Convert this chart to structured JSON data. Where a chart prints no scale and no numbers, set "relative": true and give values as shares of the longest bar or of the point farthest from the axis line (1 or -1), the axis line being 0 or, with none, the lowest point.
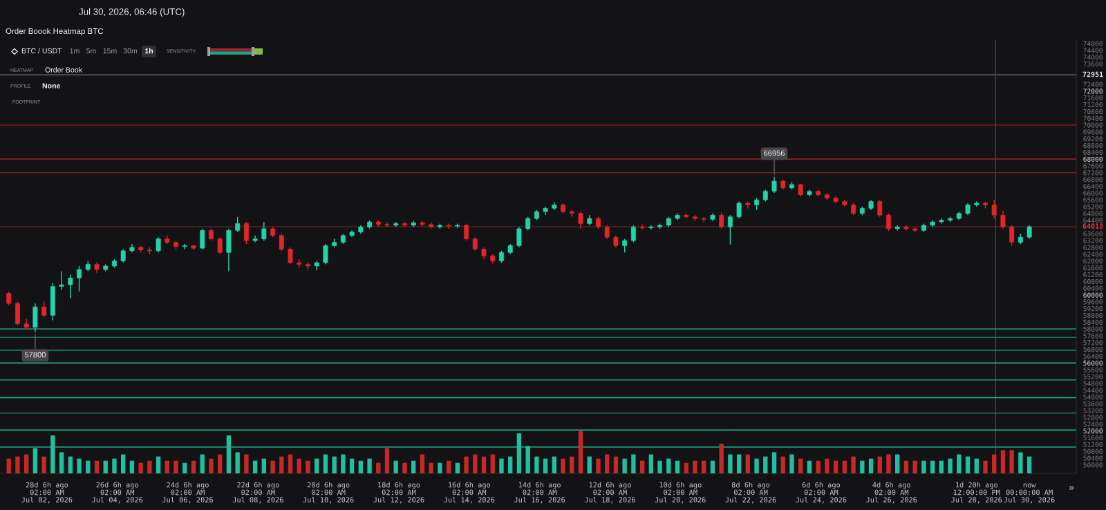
{
  "chart_data": [
    {
      "type": "candlestick",
      "title": "Order Boook Heatmap BTC",
      "subtitle": "Jul 30, 2026, 06:46 (UTC)",
      "x": [
        "2026-07-01T00:00",
        "2026-07-01T06:00",
        "2026-07-01T12:00",
        "2026-07-01T18:00",
        "2026-07-02T00:00",
        "2026-07-02T06:00",
        "2026-07-02T12:00",
        "2026-07-02T18:00",
        "2026-07-03T00:00",
        "2026-07-03T06:00",
        "2026-07-03T12:00",
        "2026-07-03T18:00",
        "2026-07-04T00:00",
        "2026-07-04T06:00",
        "2026-07-04T12:00",
        "2026-07-04T18:00",
        "2026-07-05T00:00",
        "2026-07-05T06:00",
        "2026-07-05T12:00",
        "2026-07-05T18:00",
        "2026-07-06T00:00",
        "2026-07-06T06:00",
        "2026-07-06T12:00",
        "2026-07-06T18:00",
        "2026-07-07T00:00",
        "2026-07-07T06:00",
        "2026-07-07T12:00",
        "2026-07-07T18:00",
        "2026-07-08T00:00",
        "2026-07-08T06:00",
        "2026-07-08T12:00",
        "2026-07-08T18:00",
        "2026-07-09T00:00",
        "2026-07-09T06:00",
        "2026-07-09T12:00",
        "2026-07-09T18:00",
        "2026-07-10T00:00",
        "2026-07-10T06:00",
        "2026-07-10T12:00",
        "2026-07-10T18:00",
        "2026-07-11T00:00",
        "2026-07-11T06:00",
        "2026-07-11T12:00",
        "2026-07-11T18:00",
        "2026-07-12T00:00",
        "2026-07-12T06:00",
        "2026-07-12T12:00",
        "2026-07-12T18:00",
        "2026-07-13T00:00",
        "2026-07-13T06:00",
        "2026-07-13T12:00",
        "2026-07-13T18:00",
        "2026-07-14T00:00",
        "2026-07-14T06:00",
        "2026-07-14T12:00",
        "2026-07-14T18:00",
        "2026-07-15T00:00",
        "2026-07-15T06:00",
        "2026-07-15T12:00",
        "2026-07-15T18:00",
        "2026-07-16T00:00",
        "2026-07-16T06:00",
        "2026-07-16T12:00",
        "2026-07-16T18:00",
        "2026-07-17T00:00",
        "2026-07-17T06:00",
        "2026-07-17T12:00",
        "2026-07-17T18:00",
        "2026-07-18T00:00",
        "2026-07-18T06:00",
        "2026-07-18T12:00",
        "2026-07-18T18:00",
        "2026-07-19T00:00",
        "2026-07-19T06:00",
        "2026-07-19T12:00",
        "2026-07-19T18:00",
        "2026-07-20T00:00",
        "2026-07-20T06:00",
        "2026-07-20T12:00",
        "2026-07-20T18:00",
        "2026-07-21T00:00",
        "2026-07-21T06:00",
        "2026-07-21T12:00",
        "2026-07-21T18:00",
        "2026-07-22T00:00",
        "2026-07-22T06:00",
        "2026-07-22T12:00",
        "2026-07-22T18:00",
        "2026-07-23T00:00",
        "2026-07-23T06:00",
        "2026-07-23T12:00",
        "2026-07-23T18:00",
        "2026-07-24T00:00",
        "2026-07-24T06:00",
        "2026-07-24T12:00",
        "2026-07-24T18:00",
        "2026-07-25T00:00",
        "2026-07-25T06:00",
        "2026-07-25T12:00",
        "2026-07-25T18:00",
        "2026-07-26T00:00",
        "2026-07-26T06:00",
        "2026-07-26T12:00",
        "2026-07-26T18:00",
        "2026-07-27T00:00",
        "2026-07-27T06:00",
        "2026-07-27T12:00",
        "2026-07-27T18:00",
        "2026-07-28T00:00",
        "2026-07-28T06:00",
        "2026-07-28T12:00",
        "2026-07-28T18:00",
        "2026-07-29T00:00",
        "2026-07-29T06:00",
        "2026-07-29T12:00",
        "2026-07-29T18:00",
        "2026-07-30T00:00"
      ],
      "ohlc": [
        [
          60100,
          60200,
          59400,
          59500
        ],
        [
          59500,
          59600,
          58200,
          58300
        ],
        [
          58300,
          58600,
          57950,
          58100
        ],
        [
          58100,
          59500,
          57800,
          59300
        ],
        [
          59300,
          59600,
          58700,
          58800
        ],
        [
          58800,
          60700,
          58500,
          60500
        ],
        [
          60500,
          61400,
          60300,
          60600
        ],
        [
          60600,
          61200,
          59800,
          61000
        ],
        [
          61000,
          61700,
          60200,
          61500
        ],
        [
          61500,
          62000,
          61400,
          61800
        ],
        [
          61800,
          61900,
          61300,
          61500
        ],
        [
          61500,
          61800,
          61400,
          61700
        ],
        [
          61700,
          62100,
          61600,
          62000
        ],
        [
          62000,
          62700,
          61900,
          62600
        ],
        [
          62600,
          63000,
          62500,
          62800
        ],
        [
          62800,
          62900,
          62500,
          62650
        ],
        [
          62650,
          62800,
          62400,
          62600
        ],
        [
          62600,
          63400,
          62500,
          63300
        ],
        [
          63300,
          63500,
          63000,
          63100
        ],
        [
          63100,
          63150,
          62700,
          62850
        ],
        [
          62850,
          63000,
          62700,
          62900
        ],
        [
          62900,
          62950,
          62650,
          62750
        ],
        [
          62750,
          63900,
          62700,
          63800
        ],
        [
          63800,
          63900,
          63200,
          63300
        ],
        [
          63300,
          63400,
          62400,
          62500
        ],
        [
          62500,
          63900,
          61400,
          63800
        ],
        [
          63800,
          64600,
          63700,
          64200
        ],
        [
          64200,
          64300,
          63000,
          63200
        ],
        [
          63200,
          63500,
          63100,
          63300
        ],
        [
          63300,
          64300,
          63200,
          63900
        ],
        [
          63900,
          64000,
          63400,
          63500
        ],
        [
          63500,
          63600,
          62600,
          62700
        ],
        [
          62700,
          62800,
          61800,
          61900
        ],
        [
          61900,
          62100,
          61600,
          61800
        ],
        [
          61800,
          61900,
          61500,
          61700
        ],
        [
          61700,
          62000,
          61450,
          61900
        ],
        [
          61900,
          63000,
          61800,
          62900
        ],
        [
          62900,
          63300,
          62800,
          63100
        ],
        [
          63100,
          63600,
          63000,
          63500
        ],
        [
          63500,
          63800,
          63400,
          63700
        ],
        [
          63700,
          64100,
          63600,
          64000
        ],
        [
          64000,
          64400,
          63900,
          64300
        ],
        [
          64300,
          64400,
          64000,
          64150
        ],
        [
          64150,
          64250,
          64000,
          64100
        ],
        [
          64100,
          64300,
          64000,
          64200
        ],
        [
          64200,
          64300,
          64000,
          64100
        ],
        [
          64100,
          64350,
          64000,
          64250
        ],
        [
          64250,
          64350,
          64050,
          64150
        ],
        [
          64150,
          64250,
          63900,
          64000
        ],
        [
          64000,
          64200,
          63900,
          64100
        ],
        [
          64100,
          64200,
          63900,
          64050
        ],
        [
          64050,
          64200,
          63950,
          64100
        ],
        [
          64100,
          64200,
          63200,
          63300
        ],
        [
          63300,
          63400,
          62600,
          62700
        ],
        [
          62700,
          62800,
          62100,
          62300
        ],
        [
          62300,
          62400,
          61850,
          62000
        ],
        [
          62000,
          62600,
          61900,
          62500
        ],
        [
          62500,
          63000,
          62400,
          62900
        ],
        [
          62900,
          64000,
          62800,
          63900
        ],
        [
          63900,
          64600,
          63800,
          64500
        ],
        [
          64500,
          65000,
          64400,
          64900
        ],
        [
          64900,
          65200,
          64700,
          65100
        ],
        [
          65100,
          65450,
          65000,
          65300
        ],
        [
          65300,
          65400,
          64800,
          64900
        ],
        [
          64900,
          65000,
          64600,
          64800
        ],
        [
          64800,
          64900,
          63900,
          64200
        ],
        [
          64200,
          64700,
          64100,
          64500
        ],
        [
          64500,
          64600,
          63900,
          64000
        ],
        [
          64000,
          64100,
          63300,
          63400
        ],
        [
          63400,
          63500,
          62800,
          62900
        ],
        [
          62900,
          63300,
          62500,
          63200
        ],
        [
          63200,
          64100,
          63100,
          64000
        ],
        [
          64000,
          64150,
          63850,
          63950
        ],
        [
          63950,
          64100,
          63850,
          64000
        ],
        [
          64000,
          64200,
          63900,
          64100
        ],
        [
          64100,
          64600,
          64000,
          64500
        ],
        [
          64500,
          64800,
          64400,
          64700
        ],
        [
          64700,
          64800,
          64500,
          64600
        ],
        [
          64600,
          64700,
          64350,
          64500
        ],
        [
          64500,
          64600,
          64300,
          64450
        ],
        [
          64450,
          64800,
          64350,
          64700
        ],
        [
          64700,
          64850,
          63900,
          64000
        ],
        [
          64000,
          64700,
          62970,
          64600
        ],
        [
          64600,
          65500,
          64500,
          65400
        ],
        [
          65400,
          65500,
          65100,
          65300
        ],
        [
          65300,
          65700,
          65000,
          65600
        ],
        [
          65600,
          66200,
          65500,
          66100
        ],
        [
          66100,
          66956,
          66000,
          66700
        ],
        [
          66700,
          66800,
          66200,
          66300
        ],
        [
          66300,
          66650,
          66200,
          66500
        ],
        [
          66500,
          66550,
          65800,
          65900
        ],
        [
          65900,
          66200,
          65800,
          66100
        ],
        [
          66100,
          66200,
          65800,
          65900
        ],
        [
          65900,
          66000,
          65600,
          65700
        ],
        [
          65700,
          65800,
          65400,
          65500
        ],
        [
          65500,
          65600,
          65200,
          65300
        ],
        [
          65300,
          65400,
          64700,
          64800
        ],
        [
          64800,
          65200,
          64700,
          65100
        ],
        [
          65100,
          65600,
          65000,
          65500
        ],
        [
          65500,
          65600,
          64600,
          64700
        ],
        [
          64700,
          64800,
          63750,
          63900
        ],
        [
          63900,
          64100,
          63800,
          64000
        ],
        [
          64000,
          64100,
          63800,
          63900
        ],
        [
          63900,
          64000,
          63700,
          63800
        ],
        [
          63800,
          64200,
          63700,
          64100
        ],
        [
          64100,
          64400,
          64000,
          64300
        ],
        [
          64300,
          64500,
          64200,
          64400
        ],
        [
          64400,
          64600,
          64300,
          64500
        ],
        [
          64500,
          64900,
          64400,
          64800
        ],
        [
          64800,
          65400,
          64700,
          65300
        ],
        [
          65300,
          65500,
          65200,
          65400
        ],
        [
          65400,
          65500,
          65100,
          65300
        ],
        [
          65300,
          65600,
          64500,
          64700
        ],
        [
          64700,
          64950,
          63900,
          64000
        ],
        [
          64000,
          64100,
          62900,
          63100
        ],
        [
          63100,
          63600,
          63000,
          63400
        ],
        [
          63400,
          64100,
          63300,
          64018
        ]
      ],
      "colors": [
        "#e0252b",
        "#e0252b",
        "#e0252b",
        "#22d3aa",
        "#e0252b",
        "#22d3aa",
        "#22d3aa",
        "#22d3aa",
        "#22d3aa",
        "#22d3aa",
        "#e0252b",
        "#22d3aa",
        "#22d3aa",
        "#22d3aa",
        "#22d3aa",
        "#e0252b",
        "#e0252b",
        "#22d3aa",
        "#e0252b",
        "#e0252b",
        "#22d3aa",
        "#e0252b",
        "#22d3aa",
        "#e0252b",
        "#e0252b",
        "#22d3aa",
        "#22d3aa",
        "#e0252b",
        "#22d3aa",
        "#22d3aa",
        "#e0252b",
        "#e0252b",
        "#e0252b",
        "#e0252b",
        "#e0252b",
        "#22d3aa",
        "#22d3aa",
        "#22d3aa",
        "#22d3aa",
        "#22d3aa",
        "#22d3aa",
        "#22d3aa",
        "#e0252b",
        "#e0252b",
        "#22d3aa",
        "#e0252b",
        "#22d3aa",
        "#e0252b",
        "#e0252b",
        "#22d3aa",
        "#e0252b",
        "#22d3aa",
        "#e0252b",
        "#e0252b",
        "#e0252b",
        "#e0252b",
        "#22d3aa",
        "#22d3aa",
        "#22d3aa",
        "#22d3aa",
        "#22d3aa",
        "#22d3aa",
        "#22d3aa",
        "#e0252b",
        "#e0252b",
        "#e0252b",
        "#22d3aa",
        "#e0252b",
        "#e0252b",
        "#e0252b",
        "#22d3aa",
        "#22d3aa",
        "#e0252b",
        "#22d3aa",
        "#22d3aa",
        "#22d3aa",
        "#22d3aa",
        "#e0252b",
        "#e0252b",
        "#e0252b",
        "#22d3aa",
        "#e0252b",
        "#22d3aa",
        "#22d3aa",
        "#e0252b",
        "#22d3aa",
        "#22d3aa",
        "#22d3aa",
        "#e0252b",
        "#22d3aa",
        "#e0252b",
        "#22d3aa",
        "#e0252b",
        "#e0252b",
        "#e0252b",
        "#e0252b",
        "#e0252b",
        "#22d3aa",
        "#22d3aa",
        "#e0252b",
        "#e0252b",
        "#22d3aa",
        "#e0252b",
        "#e0252b",
        "#22d3aa",
        "#22d3aa",
        "#22d3aa",
        "#22d3aa",
        "#22d3aa",
        "#22d3aa",
        "#22d3aa",
        "#e0252b",
        "#e0252b",
        "#e0252b",
        "#e0252b",
        "#22d3aa",
        "#22d3aa"
      ],
      "xlim": [
        "2026-06-30T18:00",
        "2026-07-31T08:00"
      ],
      "xticks": [
        {
          "value": "2026-07-02T02:00",
          "label": "28d 6h ago\n02:00 AM\nJul 02, 2026"
        },
        {
          "value": "2026-07-04T02:00",
          "label": "26d 6h ago\n02:00 AM\nJul 04, 2026"
        },
        {
          "value": "2026-07-06T02:00",
          "label": "24d 6h ago\n02:00 AM\nJul 06, 2026"
        },
        {
          "value": "2026-07-08T02:00",
          "label": "22d 6h ago\n02:00 AM\nJul 08, 2026"
        },
        {
          "value": "2026-07-10T02:00",
          "label": "20d 6h ago\n02:00 AM\nJul 10, 2026"
        },
        {
          "value": "2026-07-12T02:00",
          "label": "18d 6h ago\n02:00 AM\nJul 12, 2026"
        },
        {
          "value": "2026-07-14T02:00",
          "label": "16d 6h ago\n02:00 AM\nJul 14, 2026"
        },
        {
          "value": "2026-07-16T02:00",
          "label": "14d 6h ago\n02:00 AM\nJul 16, 2026"
        },
        {
          "value": "2026-07-18T02:00",
          "label": "12d 6h ago\n02:00 AM\nJul 18, 2026"
        },
        {
          "value": "2026-07-20T02:00",
          "label": "10d 6h ago\n02:00 AM\nJul 20, 2026"
        },
        {
          "value": "2026-07-22T02:00",
          "label": "8d 6h ago\n02:00 AM\nJul 22, 2026"
        },
        {
          "value": "2026-07-24T02:00",
          "label": "6d 6h ago\n02:00 AM\nJul 24, 2026"
        },
        {
          "value": "2026-07-26T02:00",
          "label": "4d 6h ago\n02:00 AM\nJul 26, 2026"
        },
        {
          "value": "2026-07-28T12:00",
          "label": "1d 20h ago\n12:00:00 PM\nJul 28, 2026"
        },
        {
          "value": "2026-07-30T00:00",
          "label": "now\n00:00:00 AM\nJul 30, 2026"
        }
      ],
      "ylim": [
        49500,
        75000
      ],
      "yticks": [
        50000,
        50400,
        50800,
        51200,
        51600,
        52000,
        52400,
        52800,
        53200,
        53600,
        54000,
        54400,
        54800,
        55200,
        55600,
        56000,
        56400,
        56800,
        57200,
        57600,
        58000,
        58400,
        58800,
        59200,
        59600,
        60000,
        60400,
        60800,
        61200,
        61600,
        62000,
        62400,
        62800,
        63200,
        63600,
        64400,
        64800,
        65200,
        65600,
        66000,
        66400,
        66800,
        67200,
        67600,
        68000,
        68400,
        68800,
        69200,
        69600,
        70000,
        70400,
        70800,
        71200,
        71600,
        72000,
        72400,
        73600,
        74000,
        74400,
        74800
      ],
      "ref_lines": [
        {
          "axis": "y",
          "value": 72951,
          "label": "72951",
          "color": "#e6e6e6"
        },
        {
          "axis": "y",
          "value": 64018,
          "label": "64018",
          "color": "#e0393e"
        },
        {
          "axis": "x",
          "value": "2026-07-29T01:00",
          "color": "#4a4a4f"
        },
        {
          "axis": "y",
          "value": 70000,
          "color": "#7d1c1f"
        },
        {
          "axis": "y",
          "value": 68000,
          "color": "#8c2024"
        },
        {
          "axis": "y",
          "value": 67200,
          "color": "#7d1c1f"
        },
        {
          "axis": "y",
          "value": 58000,
          "color": "#1c9c80"
        },
        {
          "axis": "y",
          "value": 57500,
          "color": "#177a66"
        },
        {
          "axis": "y",
          "value": 56750,
          "color": "#1c9c80"
        },
        {
          "axis": "y",
          "value": 56000,
          "color": "#22c49a"
        },
        {
          "axis": "y",
          "value": 55000,
          "color": "#1c9c80"
        },
        {
          "axis": "y",
          "value": 53950,
          "color": "#22c49a"
        },
        {
          "axis": "y",
          "value": 53050,
          "color": "#177a66"
        },
        {
          "axis": "y",
          "value": 52050,
          "color": "#22c49a"
        },
        {
          "axis": "y",
          "value": 51050,
          "color": "#1c9c80"
        }
      ],
      "annotations": [
        "BTC / USDT",
        "1m",
        "5m",
        "15m",
        "30m",
        "1h",
        "SENSITIVITY",
        "HEATMAP",
        "Order Book",
        "PROFILE",
        "None",
        "FOOTPRINT",
        "»",
        {
          "text": "57800",
          "x": "2026-07-01T18:00",
          "y": 57800
        },
        {
          "text": "66956",
          "x": "2026-07-22T18:00",
          "y": 66956
        }
      ]
    },
    {
      "type": "bar",
      "relative": true,
      "tick_labels": false,
      "xlim": [
        "2026-06-30T18:00",
        "2026-07-31T08:00"
      ],
      "x": [
        "2026-07-01T00:00",
        "2026-07-01T06:00",
        "2026-07-01T12:00",
        "2026-07-01T18:00",
        "2026-07-02T00:00",
        "2026-07-02T06:00",
        "2026-07-02T12:00",
        "2026-07-02T18:00",
        "2026-07-03T00:00",
        "2026-07-03T06:00",
        "2026-07-03T12:00",
        "2026-07-03T18:00",
        "2026-07-04T00:00",
        "2026-07-04T06:00",
        "2026-07-04T12:00",
        "2026-07-04T18:00",
        "2026-07-05T00:00",
        "2026-07-05T06:00",
        "2026-07-05T12:00",
        "2026-07-05T18:00",
        "2026-07-06T00:00",
        "2026-07-06T06:00",
        "2026-07-06T12:00",
        "2026-07-06T18:00",
        "2026-07-07T00:00",
        "2026-07-07T06:00",
        "2026-07-07T12:00",
        "2026-07-07T18:00",
        "2026-07-08T00:00",
        "2026-07-08T06:00",
        "2026-07-08T12:00",
        "2026-07-08T18:00",
        "2026-07-09T00:00",
        "2026-07-09T06:00",
        "2026-07-09T12:00",
        "2026-07-09T18:00",
        "2026-07-10T00:00",
        "2026-07-10T06:00",
        "2026-07-10T12:00",
        "2026-07-10T18:00",
        "2026-07-11T00:00",
        "2026-07-11T06:00",
        "2026-07-11T12:00",
        "2026-07-11T18:00",
        "2026-07-12T00:00",
        "2026-07-12T06:00",
        "2026-07-12T12:00",
        "2026-07-12T18:00",
        "2026-07-13T00:00",
        "2026-07-13T06:00",
        "2026-07-13T12:00",
        "2026-07-13T18:00",
        "2026-07-14T00:00",
        "2026-07-14T06:00",
        "2026-07-14T12:00",
        "2026-07-14T18:00",
        "2026-07-15T00:00",
        "2026-07-15T06:00",
        "2026-07-15T12:00",
        "2026-07-15T18:00",
        "2026-07-16T00:00",
        "2026-07-16T06:00",
        "2026-07-16T12:00",
        "2026-07-16T18:00",
        "2026-07-17T00:00",
        "2026-07-17T06:00",
        "2026-07-17T12:00",
        "2026-07-17T18:00",
        "2026-07-18T00:00",
        "2026-07-18T06:00",
        "2026-07-18T12:00",
        "2026-07-18T18:00",
        "2026-07-19T00:00",
        "2026-07-19T06:00",
        "2026-07-19T12:00",
        "2026-07-19T18:00",
        "2026-07-20T00:00",
        "2026-07-20T06:00",
        "2026-07-20T12:00",
        "2026-07-20T18:00",
        "2026-07-21T00:00",
        "2026-07-21T06:00",
        "2026-07-21T12:00",
        "2026-07-21T18:00",
        "2026-07-22T00:00",
        "2026-07-22T06:00",
        "2026-07-22T12:00",
        "2026-07-22T18:00",
        "2026-07-23T00:00",
        "2026-07-23T06:00",
        "2026-07-23T12:00",
        "2026-07-23T18:00",
        "2026-07-24T00:00",
        "2026-07-24T06:00",
        "2026-07-24T12:00",
        "2026-07-24T18:00",
        "2026-07-25T00:00",
        "2026-07-25T06:00",
        "2026-07-25T12:00",
        "2026-07-25T18:00",
        "2026-07-26T00:00",
        "2026-07-26T06:00",
        "2026-07-26T12:00",
        "2026-07-26T18:00",
        "2026-07-27T00:00",
        "2026-07-27T06:00",
        "2026-07-27T12:00",
        "2026-07-27T18:00",
        "2026-07-28T00:00",
        "2026-07-28T06:00",
        "2026-07-28T12:00",
        "2026-07-28T18:00",
        "2026-07-29T00:00",
        "2026-07-29T06:00",
        "2026-07-29T12:00",
        "2026-07-29T18:00",
        "2026-07-30T00:00"
      ],
      "values": [
        0.35,
        0.4,
        0.45,
        0.6,
        0.4,
        0.9,
        0.5,
        0.4,
        0.35,
        0.3,
        0.3,
        0.3,
        0.35,
        0.45,
        0.3,
        0.25,
        0.3,
        0.4,
        0.3,
        0.3,
        0.25,
        0.3,
        0.45,
        0.35,
        0.45,
        0.9,
        0.5,
        0.45,
        0.3,
        0.35,
        0.3,
        0.4,
        0.45,
        0.35,
        0.3,
        0.35,
        0.45,
        0.4,
        0.45,
        0.35,
        0.3,
        0.35,
        0.25,
        0.6,
        0.3,
        0.25,
        0.3,
        0.45,
        0.25,
        0.25,
        0.3,
        0.25,
        0.4,
        0.45,
        0.4,
        0.45,
        0.35,
        0.4,
        0.95,
        0.65,
        0.4,
        0.35,
        0.4,
        0.35,
        0.4,
        1,
        0.4,
        0.35,
        0.45,
        0.4,
        0.35,
        0.45,
        0.3,
        0.45,
        0.3,
        0.35,
        0.3,
        0.25,
        0.3,
        0.3,
        0.3,
        0.7,
        0.45,
        0.45,
        0.45,
        0.35,
        0.4,
        0.5,
        0.4,
        0.45,
        0.35,
        0.3,
        0.3,
        0.35,
        0.3,
        0.3,
        0.4,
        0.3,
        0.35,
        0.4,
        0.45,
        0.45,
        0.3,
        0.3,
        0.3,
        0.3,
        0.3,
        0.35,
        0.45,
        0.4,
        0.35,
        0.3,
        0.45,
        0.55,
        0.55,
        0.5,
        0.4
      ],
      "colors": [
        "#c62828",
        "#c62828",
        "#c62828",
        "#1fbf9f",
        "#c62828",
        "#1fbf9f",
        "#1fbf9f",
        "#1fbf9f",
        "#1fbf9f",
        "#1fbf9f",
        "#c62828",
        "#1fbf9f",
        "#1fbf9f",
        "#1fbf9f",
        "#1fbf9f",
        "#c62828",
        "#c62828",
        "#1fbf9f",
        "#c62828",
        "#c62828",
        "#1fbf9f",
        "#c62828",
        "#1fbf9f",
        "#c62828",
        "#c62828",
        "#1fbf9f",
        "#1fbf9f",
        "#c62828",
        "#1fbf9f",
        "#1fbf9f",
        "#c62828",
        "#c62828",
        "#c62828",
        "#c62828",
        "#c62828",
        "#1fbf9f",
        "#1fbf9f",
        "#1fbf9f",
        "#1fbf9f",
        "#1fbf9f",
        "#1fbf9f",
        "#1fbf9f",
        "#c62828",
        "#c62828",
        "#1fbf9f",
        "#c62828",
        "#1fbf9f",
        "#c62828",
        "#c62828",
        "#1fbf9f",
        "#c62828",
        "#1fbf9f",
        "#c62828",
        "#c62828",
        "#c62828",
        "#c62828",
        "#1fbf9f",
        "#1fbf9f",
        "#1fbf9f",
        "#1fbf9f",
        "#1fbf9f",
        "#1fbf9f",
        "#1fbf9f",
        "#c62828",
        "#c62828",
        "#c62828",
        "#1fbf9f",
        "#c62828",
        "#c62828",
        "#c62828",
        "#1fbf9f",
        "#1fbf9f",
        "#c62828",
        "#1fbf9f",
        "#1fbf9f",
        "#1fbf9f",
        "#1fbf9f",
        "#c62828",
        "#c62828",
        "#c62828",
        "#1fbf9f",
        "#c62828",
        "#1fbf9f",
        "#1fbf9f",
        "#c62828",
        "#1fbf9f",
        "#1fbf9f",
        "#1fbf9f",
        "#c62828",
        "#1fbf9f",
        "#c62828",
        "#1fbf9f",
        "#c62828",
        "#c62828",
        "#c62828",
        "#c62828",
        "#c62828",
        "#1fbf9f",
        "#1fbf9f",
        "#c62828",
        "#c62828",
        "#1fbf9f",
        "#c62828",
        "#c62828",
        "#1fbf9f",
        "#1fbf9f",
        "#1fbf9f",
        "#1fbf9f",
        "#1fbf9f",
        "#1fbf9f",
        "#1fbf9f",
        "#c62828",
        "#c62828",
        "#c62828",
        "#c62828",
        "#1fbf9f",
        "#1fbf9f"
      ]
    }
  ]
}
